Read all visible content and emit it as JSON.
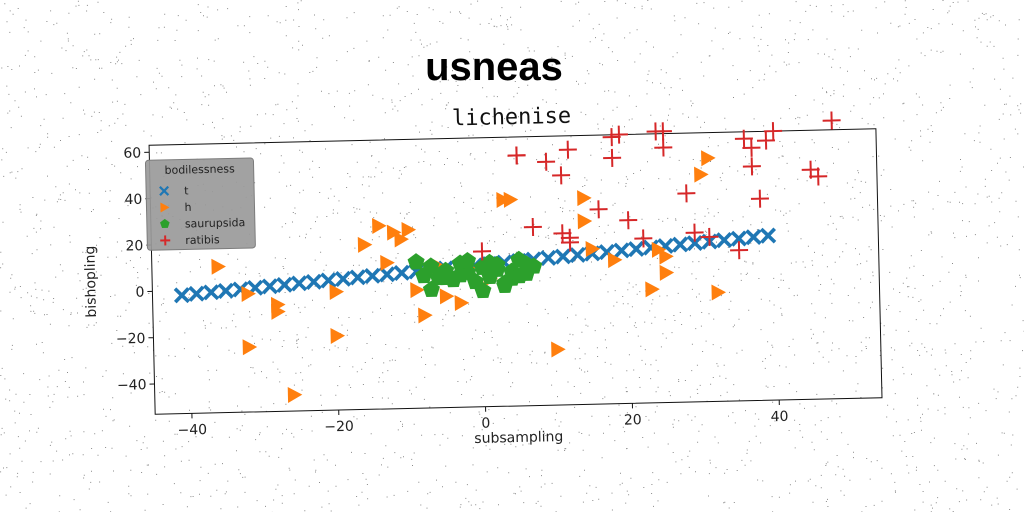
{
  "chart_data": {
    "type": "scatter",
    "suptitle": "usneas",
    "title": "lichenise",
    "xlabel": "subsampling",
    "ylabel": "bishopling",
    "xlim": [
      -45,
      54
    ],
    "ylim": [
      -53,
      63
    ],
    "xticks": [
      -40,
      -20,
      0,
      20,
      40
    ],
    "yticks": [
      -40,
      -20,
      0,
      20,
      40,
      60
    ],
    "grid": false,
    "legend": {
      "title": "bodilessness",
      "placement": "upper-left"
    },
    "series": [
      {
        "name": "t",
        "marker": "X",
        "color": "#1f77b4",
        "x": [
          -41,
          -39,
          -37,
          -35,
          -33,
          -31,
          -29,
          -27,
          -25,
          -23,
          -21,
          -19,
          -17,
          -15,
          -13,
          -11,
          -9,
          -7,
          -5,
          -3,
          -1,
          1,
          3,
          5,
          7,
          9,
          11,
          13,
          15,
          17,
          19,
          21,
          23,
          25,
          27,
          29,
          31,
          33,
          35,
          37,
          39
        ],
        "y": [
          -2,
          -1.5,
          -1,
          -0.5,
          0,
          0.5,
          1,
          1.5,
          2,
          2.5,
          3,
          3.5,
          4,
          4.5,
          5,
          5.5,
          6,
          6.5,
          7,
          7.5,
          8,
          8.5,
          9,
          9.5,
          10,
          10.5,
          11,
          11.5,
          12,
          12.5,
          13,
          13.5,
          14,
          14.5,
          15,
          15.5,
          16,
          16.5,
          17,
          17.5,
          18
        ]
      },
      {
        "name": "h",
        "marker": "triangle-right",
        "color": "#ff7f0e",
        "x": [
          -36,
          -32,
          -32,
          -28,
          -28,
          -26,
          -20,
          -20,
          -16,
          -14,
          -13,
          -12,
          -11,
          -10,
          -9,
          -8,
          -6,
          -5,
          -3,
          -2,
          1,
          3,
          4,
          10,
          14,
          14,
          15,
          18,
          23,
          24,
          25,
          25,
          30,
          31,
          32
        ],
        "y": [
          10,
          -25,
          -2,
          -7,
          -10,
          -46,
          -21,
          -2,
          18,
          26,
          10,
          23,
          20,
          24,
          -2,
          -13,
          8,
          -5,
          -8,
          7,
          2,
          36,
          36,
          -29,
          26,
          36,
          14,
          9,
          -4,
          13,
          10,
          3,
          45,
          52,
          -6
        ]
      },
      {
        "name": "saurupsida",
        "marker": "pentagon",
        "color": "#2ca02c",
        "x": [
          -9,
          -8,
          -7,
          -6,
          -5,
          -4,
          -3,
          -2,
          -1,
          0,
          1,
          2,
          3,
          4,
          5,
          6,
          7,
          -7,
          -5,
          -2,
          0,
          2,
          4,
          6,
          -3,
          1,
          3,
          5
        ],
        "y": [
          10,
          4,
          8,
          3,
          6,
          2,
          9,
          5,
          1,
          7,
          3,
          8,
          -1,
          5,
          10,
          4,
          7,
          -2,
          3,
          10,
          -3,
          6,
          2,
          8,
          4,
          9,
          0,
          3
        ]
      },
      {
        "name": "ratibis",
        "marker": "plus",
        "color": "#d62728",
        "x": [
          0,
          5,
          5,
          7,
          9,
          11,
          11,
          12,
          12,
          12,
          16,
          18,
          18,
          19,
          20,
          22,
          24,
          25,
          25,
          28,
          29,
          31,
          35,
          36,
          37,
          37,
          38,
          39,
          40,
          45,
          46,
          48
        ],
        "y": [
          14,
          55,
          55,
          24,
          52,
          21,
          46,
          17,
          19,
          57,
          31,
          53,
          62,
          63,
          26,
          18,
          64,
          64,
          57,
          37,
          20,
          18,
          12,
          60,
          56,
          48,
          34,
          59,
          63,
          46,
          43,
          67
        ]
      }
    ]
  }
}
